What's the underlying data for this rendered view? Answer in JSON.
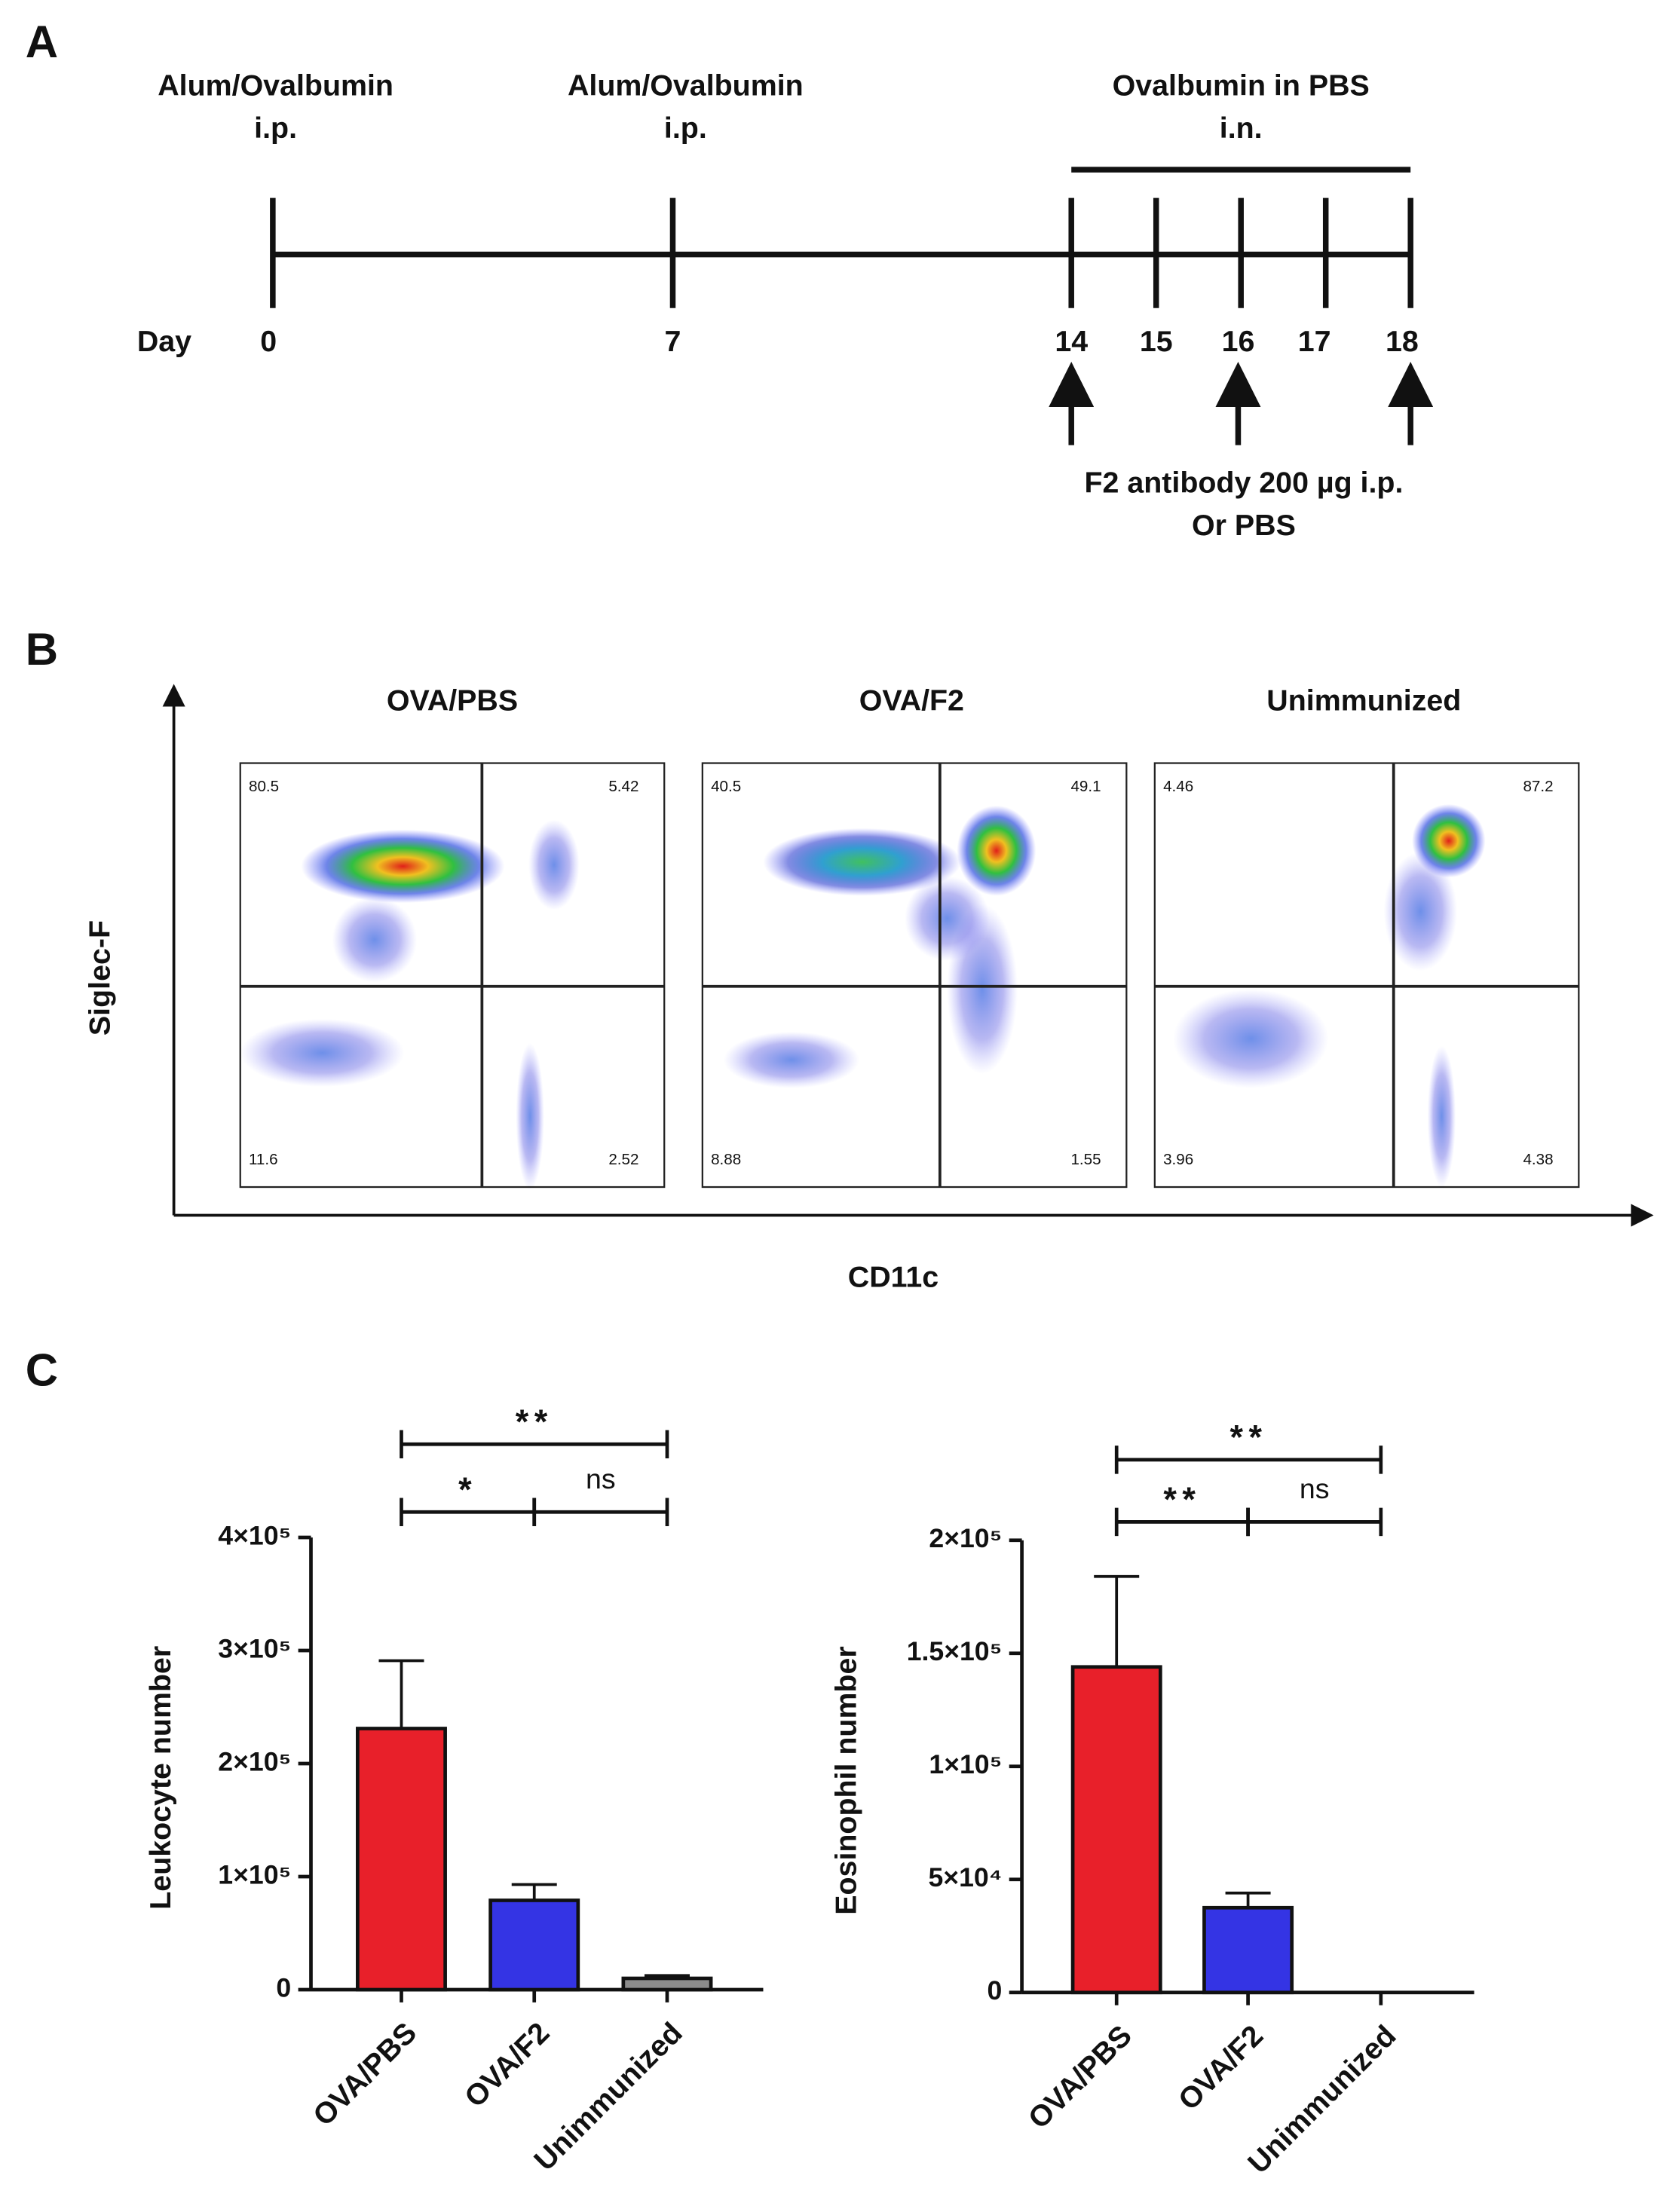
{
  "panel_labels": [
    "A",
    "B",
    "C"
  ],
  "timeline": {
    "events": [
      {
        "lines": [
          "Alum/Ovalbumin",
          "i.p."
        ]
      },
      {
        "lines": [
          "Alum/Ovalbumin",
          "i.p."
        ]
      },
      {
        "lines": [
          "Ovalbumin  in PBS",
          "i.n."
        ]
      }
    ],
    "day_label": "Day",
    "days": [
      0,
      7,
      14,
      15,
      16,
      17,
      18
    ],
    "treatment": [
      "F2 antibody  200 µg i.p.",
      "Or PBS"
    ]
  },
  "flow": {
    "y_label": "Siglec-F",
    "x_label": "CD11c",
    "plots": [
      {
        "title": "OVA/PBS",
        "quadrants": [
          80.5,
          5.42,
          11.6,
          2.52
        ]
      },
      {
        "title": "OVA/F2",
        "quadrants": [
          40.5,
          49.1,
          8.88,
          1.55
        ]
      },
      {
        "title": "Unimmunized",
        "quadrants": [
          4.46,
          87.2,
          3.96,
          4.38
        ]
      }
    ]
  },
  "chart_data": [
    {
      "type": "bar",
      "y_label": "Leukocyte number",
      "categories": [
        "OVA/PBS",
        "OVA/F2",
        "Unimmunized"
      ],
      "values": [
        231000,
        79000,
        10000
      ],
      "errors": [
        60000,
        14000,
        2500
      ],
      "colors": [
        "#e8202a",
        "#3434e4",
        "#8c8c8c"
      ],
      "ylim": [
        0,
        400000
      ],
      "yticks": [
        0,
        {
          "value": 100000,
          "label": "1×10⁵"
        },
        {
          "value": 200000,
          "label": "2×10⁵"
        },
        {
          "value": 300000,
          "label": "3×10⁵"
        },
        {
          "value": 400000,
          "label": "4×10⁵"
        }
      ],
      "comparisons": [
        {
          "groups": [
            "OVA/PBS",
            "OVA/F2"
          ],
          "label": "*"
        },
        {
          "groups": [
            "OVA/F2",
            "Unimmunized"
          ],
          "label": "ns"
        },
        {
          "groups": [
            "OVA/PBS",
            "Unimmunized"
          ],
          "label": "**"
        }
      ]
    },
    {
      "type": "bar",
      "y_label": "Eosinophil number",
      "categories": [
        "OVA/PBS",
        "OVA/F2",
        "Unimmunized"
      ],
      "values": [
        144000,
        37500,
        0
      ],
      "errors": [
        40000,
        6500,
        0
      ],
      "colors": [
        "#e8202a",
        "#3434e4",
        "#8c8c8c"
      ],
      "ylim": [
        0,
        200000
      ],
      "yticks": [
        0,
        {
          "value": 50000,
          "label": "5×10⁴"
        },
        {
          "value": 100000,
          "label": "1×10⁵"
        },
        {
          "value": 150000,
          "label": "1.5×10⁵"
        },
        {
          "value": 200000,
          "label": "2×10⁵"
        }
      ],
      "comparisons": [
        {
          "groups": [
            "OVA/PBS",
            "OVA/F2"
          ],
          "label": "**"
        },
        {
          "groups": [
            "OVA/F2",
            "Unimmunized"
          ],
          "label": "ns"
        },
        {
          "groups": [
            "OVA/PBS",
            "Unimmunized"
          ],
          "label": "**"
        }
      ]
    }
  ]
}
